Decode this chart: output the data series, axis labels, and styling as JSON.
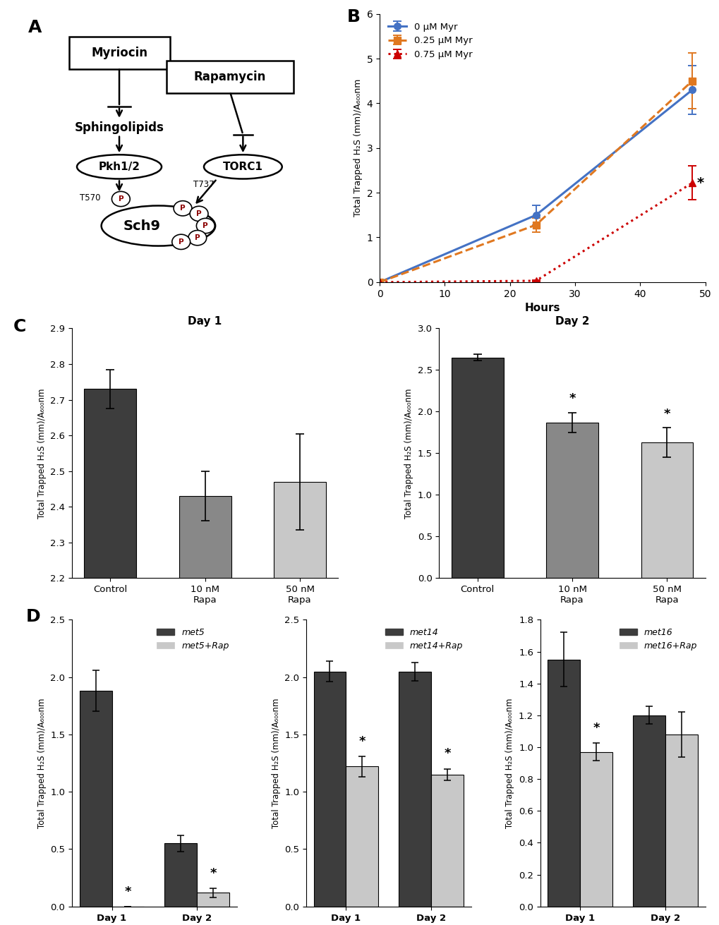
{
  "panel_B": {
    "xlabel": "Hours",
    "ylabel": "Total Trapped H₂S (mm)/A₆₀₀nm",
    "ylim": [
      0,
      6
    ],
    "xlim": [
      0,
      50
    ],
    "xticks": [
      0,
      10,
      20,
      30,
      40,
      50
    ],
    "yticks": [
      0,
      1,
      2,
      3,
      4,
      5,
      6
    ],
    "series": [
      {
        "label": "0 μM Myr",
        "x": [
          0,
          24,
          48
        ],
        "y": [
          0.0,
          1.5,
          4.3
        ],
        "yerr": [
          0.0,
          0.22,
          0.55
        ],
        "color": "#4472C4",
        "linestyle": "solid",
        "marker": "o"
      },
      {
        "label": "0.25 μM Myr",
        "x": [
          0,
          24,
          48
        ],
        "y": [
          0.0,
          1.28,
          4.5
        ],
        "yerr": [
          0.0,
          0.16,
          0.62
        ],
        "color": "#E07820",
        "linestyle": "dashed",
        "marker": "s"
      },
      {
        "label": "0.75 μM Myr",
        "x": [
          0,
          24,
          48
        ],
        "y": [
          0.0,
          0.03,
          2.22
        ],
        "yerr": [
          0.0,
          0.02,
          0.38
        ],
        "color": "#CC0000",
        "linestyle": "dotted",
        "marker": "^"
      }
    ],
    "star_x": 48,
    "star_y": 2.22
  },
  "panel_C_day1": {
    "title": "Day 1",
    "categories": [
      "Control",
      "10 nM\nRapa",
      "50 nM\nRapa"
    ],
    "values": [
      2.73,
      2.43,
      2.47
    ],
    "errors": [
      0.055,
      0.07,
      0.135
    ],
    "colors": [
      "#3d3d3d",
      "#888888",
      "#c8c8c8"
    ],
    "ylim": [
      2.2,
      2.9
    ],
    "yticks": [
      2.2,
      2.3,
      2.4,
      2.5,
      2.6,
      2.7,
      2.8,
      2.9
    ],
    "ylabel": "Total Trapped H₂S (mm)/A₆₀₀nm",
    "stars": []
  },
  "panel_C_day2": {
    "title": "Day 2",
    "categories": [
      "Control",
      "10 nM\nRapa",
      "50 nM\nRapa"
    ],
    "values": [
      2.65,
      1.87,
      1.63
    ],
    "errors": [
      0.04,
      0.12,
      0.18
    ],
    "colors": [
      "#3d3d3d",
      "#888888",
      "#c8c8c8"
    ],
    "ylim": [
      0,
      3
    ],
    "yticks": [
      0,
      0.5,
      1.0,
      1.5,
      2.0,
      2.5,
      3.0
    ],
    "ylabel": "Total Trapped H₂S (mm)/A₆₀₀nm",
    "stars": [
      1,
      2
    ]
  },
  "panel_D_met5": {
    "categories": [
      "Day 1",
      "Day 2"
    ],
    "values_dark": [
      1.88,
      0.55
    ],
    "values_light": [
      0.0,
      0.12
    ],
    "errors_dark": [
      0.18,
      0.07
    ],
    "errors_light": [
      0.0,
      0.04
    ],
    "dark_color": "#3d3d3d",
    "light_color": "#c8c8c8",
    "dark_label": "met5",
    "light_label": "met5+Rap",
    "ylim": [
      0,
      2.5
    ],
    "yticks": [
      0,
      0.5,
      1.0,
      1.5,
      2.0,
      2.5
    ],
    "ylabel": "Total Trapped H₂S (mm)/A₆₀₀nm",
    "stars_light": [
      0,
      1
    ]
  },
  "panel_D_met14": {
    "categories": [
      "Day 1",
      "Day 2"
    ],
    "values_dark": [
      2.05,
      2.05
    ],
    "values_light": [
      1.22,
      1.15
    ],
    "errors_dark": [
      0.09,
      0.08
    ],
    "errors_light": [
      0.09,
      0.05
    ],
    "dark_color": "#3d3d3d",
    "light_color": "#c8c8c8",
    "dark_label": "met14",
    "light_label": "met14+Rap",
    "ylim": [
      0,
      2.5
    ],
    "yticks": [
      0,
      0.5,
      1.0,
      1.5,
      2.0,
      2.5
    ],
    "ylabel": "Total Trapped H₂S (mm)/A₆₀₀nm",
    "stars_light": [
      0,
      1
    ]
  },
  "panel_D_met16": {
    "categories": [
      "Day 1",
      "Day 2"
    ],
    "values_dark": [
      1.55,
      1.2
    ],
    "values_light": [
      0.97,
      1.08
    ],
    "errors_dark": [
      0.17,
      0.055
    ],
    "errors_light": [
      0.055,
      0.14
    ],
    "dark_color": "#3d3d3d",
    "light_color": "#c8c8c8",
    "dark_label": "met16",
    "light_label": "met16+Rap",
    "ylim": [
      0,
      1.8
    ],
    "yticks": [
      0,
      0.2,
      0.4,
      0.6,
      0.8,
      1.0,
      1.2,
      1.4,
      1.6,
      1.8
    ],
    "ylabel": "Total Trapped H₂S (mm)/A₆₀₀nm",
    "stars_light": [
      0
    ]
  }
}
